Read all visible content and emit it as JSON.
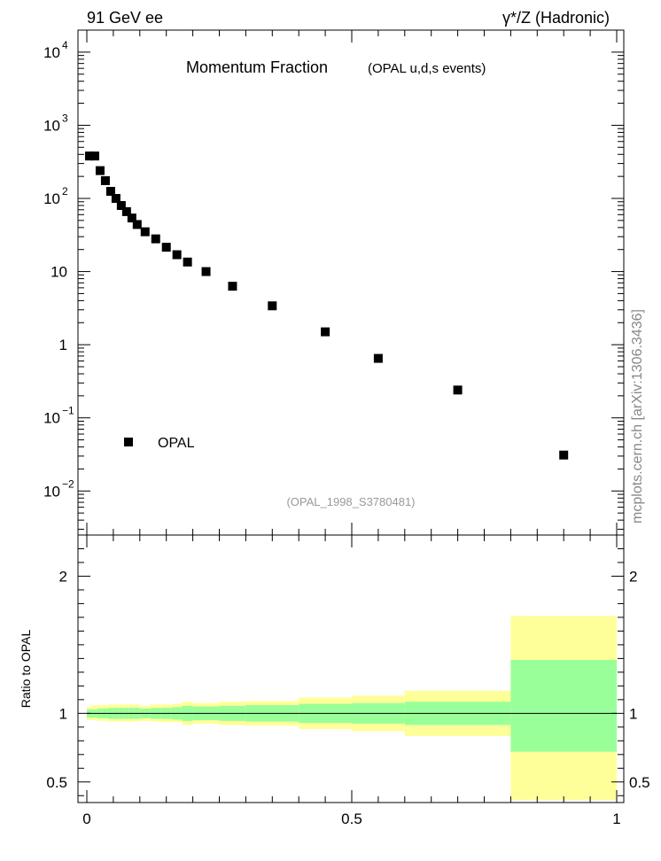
{
  "header": {
    "left": "91 GeV ee",
    "right": "γ*/Z (Hadronic)"
  },
  "plot_title": {
    "main": "Momentum Fraction",
    "sub": "(OPAL u,d,s events)"
  },
  "analysis_id": "(OPAL_1998_S3780481)",
  "side_label": "mcplots.cern.ch [arXiv:1306.3436]",
  "legend": {
    "label": "OPAL"
  },
  "ratio_ylabel": "Ratio to OPAL",
  "colors": {
    "band_inner": "#99ff99",
    "band_outer": "#ffff99",
    "marker": "#000000"
  },
  "chart_data": [
    {
      "type": "scatter",
      "title": "Momentum Fraction",
      "yscale": "log",
      "xlim": [
        0,
        1
      ],
      "ylim": [
        0.0025,
        20000
      ],
      "y_ticks": [
        {
          "v": 10000,
          "base": "10",
          "exp": "4"
        },
        {
          "v": 1000,
          "base": "10",
          "exp": "3"
        },
        {
          "v": 100,
          "base": "10",
          "exp": "2"
        },
        {
          "v": 10,
          "base": "10",
          "exp": ""
        },
        {
          "v": 1,
          "base": "1",
          "exp": ""
        },
        {
          "v": 0.1,
          "base": "10",
          "exp": "−1"
        },
        {
          "v": 0.01,
          "base": "10",
          "exp": "−2"
        }
      ],
      "series": [
        {
          "name": "OPAL",
          "x": [
            0.005,
            0.015,
            0.025,
            0.035,
            0.045,
            0.055,
            0.065,
            0.075,
            0.085,
            0.095,
            0.11,
            0.13,
            0.15,
            0.17,
            0.19,
            0.225,
            0.275,
            0.35,
            0.45,
            0.55,
            0.7,
            0.9
          ],
          "y": [
            380,
            380,
            240,
            175,
            125,
            100,
            80,
            66,
            54,
            44,
            35,
            28,
            21.5,
            17,
            13.5,
            10,
            6.3,
            3.4,
            1.5,
            0.65,
            0.24,
            0.031
          ]
        }
      ]
    },
    {
      "type": "area",
      "xlabel": "",
      "ylabel": "Ratio to OPAL",
      "xlim": [
        0,
        1
      ],
      "ylim": [
        0.35,
        2.3
      ],
      "x_ticks": [
        0,
        0.5,
        1
      ],
      "y_ticks": [
        0.5,
        1,
        2
      ],
      "reference_line": 1,
      "bins": [
        {
          "x0": 0.0,
          "x1": 0.01,
          "in_lo": 0.97,
          "in_hi": 1.03,
          "out_lo": 0.95,
          "out_hi": 1.05
        },
        {
          "x0": 0.01,
          "x1": 0.02,
          "in_lo": 0.97,
          "in_hi": 1.03,
          "out_lo": 0.95,
          "out_hi": 1.06
        },
        {
          "x0": 0.02,
          "x1": 0.03,
          "in_lo": 0.965,
          "in_hi": 1.035,
          "out_lo": 0.945,
          "out_hi": 1.06
        },
        {
          "x0": 0.03,
          "x1": 0.04,
          "in_lo": 0.965,
          "in_hi": 1.035,
          "out_lo": 0.945,
          "out_hi": 1.06
        },
        {
          "x0": 0.04,
          "x1": 0.05,
          "in_lo": 0.96,
          "in_hi": 1.04,
          "out_lo": 0.94,
          "out_hi": 1.065
        },
        {
          "x0": 0.05,
          "x1": 0.06,
          "in_lo": 0.96,
          "in_hi": 1.04,
          "out_lo": 0.94,
          "out_hi": 1.065
        },
        {
          "x0": 0.06,
          "x1": 0.07,
          "in_lo": 0.96,
          "in_hi": 1.04,
          "out_lo": 0.94,
          "out_hi": 1.065
        },
        {
          "x0": 0.07,
          "x1": 0.08,
          "in_lo": 0.96,
          "in_hi": 1.04,
          "out_lo": 0.94,
          "out_hi": 1.065
        },
        {
          "x0": 0.08,
          "x1": 0.09,
          "in_lo": 0.96,
          "in_hi": 1.04,
          "out_lo": 0.94,
          "out_hi": 1.065
        },
        {
          "x0": 0.09,
          "x1": 0.1,
          "in_lo": 0.96,
          "in_hi": 1.04,
          "out_lo": 0.94,
          "out_hi": 1.065
        },
        {
          "x0": 0.1,
          "x1": 0.12,
          "in_lo": 0.965,
          "in_hi": 1.035,
          "out_lo": 0.945,
          "out_hi": 1.055
        },
        {
          "x0": 0.12,
          "x1": 0.14,
          "in_lo": 0.96,
          "in_hi": 1.04,
          "out_lo": 0.94,
          "out_hi": 1.065
        },
        {
          "x0": 0.14,
          "x1": 0.16,
          "in_lo": 0.96,
          "in_hi": 1.04,
          "out_lo": 0.935,
          "out_hi": 1.065
        },
        {
          "x0": 0.16,
          "x1": 0.18,
          "in_lo": 0.955,
          "in_hi": 1.045,
          "out_lo": 0.935,
          "out_hi": 1.07
        },
        {
          "x0": 0.18,
          "x1": 0.2,
          "in_lo": 0.945,
          "in_hi": 1.055,
          "out_lo": 0.915,
          "out_hi": 1.085
        },
        {
          "x0": 0.2,
          "x1": 0.25,
          "in_lo": 0.95,
          "in_hi": 1.05,
          "out_lo": 0.925,
          "out_hi": 1.075
        },
        {
          "x0": 0.25,
          "x1": 0.3,
          "in_lo": 0.945,
          "in_hi": 1.055,
          "out_lo": 0.915,
          "out_hi": 1.085
        },
        {
          "x0": 0.3,
          "x1": 0.4,
          "in_lo": 0.94,
          "in_hi": 1.06,
          "out_lo": 0.91,
          "out_hi": 1.09
        },
        {
          "x0": 0.4,
          "x1": 0.5,
          "in_lo": 0.93,
          "in_hi": 1.07,
          "out_lo": 0.885,
          "out_hi": 1.115
        },
        {
          "x0": 0.5,
          "x1": 0.6,
          "in_lo": 0.925,
          "in_hi": 1.075,
          "out_lo": 0.87,
          "out_hi": 1.13
        },
        {
          "x0": 0.6,
          "x1": 0.8,
          "in_lo": 0.915,
          "in_hi": 1.085,
          "out_lo": 0.835,
          "out_hi": 1.165
        },
        {
          "x0": 0.8,
          "x1": 1.0,
          "in_lo": 0.72,
          "in_hi": 1.39,
          "out_lo": 0.37,
          "out_hi": 1.71
        }
      ]
    }
  ]
}
